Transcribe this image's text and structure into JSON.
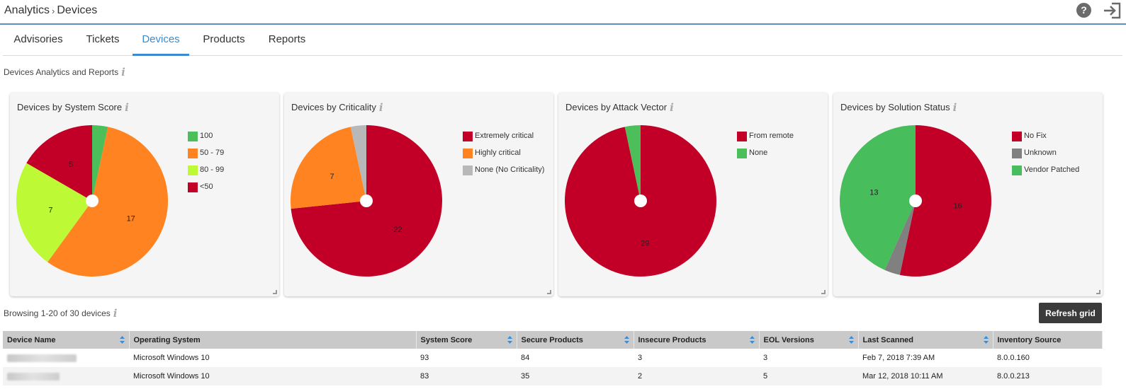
{
  "breadcrumb": {
    "section": "Analytics",
    "page": "Devices"
  },
  "header": {
    "help_icon": "question-circle-icon",
    "logout_icon": "sign-out-icon"
  },
  "tabs": [
    {
      "label": "Advisories",
      "active": false
    },
    {
      "label": "Tickets",
      "active": false
    },
    {
      "label": "Devices",
      "active": true
    },
    {
      "label": "Products",
      "active": false
    },
    {
      "label": "Reports",
      "active": false
    }
  ],
  "section_title": "Devices Analytics and Reports",
  "cards": [
    {
      "title": "Devices by System Score"
    },
    {
      "title": "Devices by Criticality"
    },
    {
      "title": "Devices by Attack Vector"
    },
    {
      "title": "Devices by Solution Status"
    }
  ],
  "chart_data": [
    {
      "type": "pie",
      "title": "Devices by System Score",
      "categories": [
        "100",
        "50 - 79",
        "80 - 99",
        "<50"
      ],
      "values": [
        1,
        17,
        7,
        5
      ],
      "colors": [
        "#4cbf5a",
        "#ff8421",
        "#bdfa35",
        "#c20027"
      ],
      "labels_shown": [
        false,
        true,
        true,
        true
      ],
      "legend": "right"
    },
    {
      "type": "pie",
      "title": "Devices by Criticality",
      "categories": [
        "Extremely critical",
        "Highly critical",
        "None (No Criticality)"
      ],
      "values": [
        22,
        7,
        1
      ],
      "colors": [
        "#c20027",
        "#ff8421",
        "#b8b8b8"
      ],
      "labels_shown": [
        true,
        true,
        false
      ],
      "legend": "right"
    },
    {
      "type": "pie",
      "title": "Devices by Attack Vector",
      "categories": [
        "From remote",
        "None"
      ],
      "values": [
        29,
        1
      ],
      "colors": [
        "#c20027",
        "#4cbf5a"
      ],
      "labels_shown": [
        true,
        false
      ],
      "legend": "right"
    },
    {
      "type": "pie",
      "title": "Devices by Solution Status",
      "categories": [
        "No Fix",
        "Unknown",
        "Vendor Patched"
      ],
      "values": [
        16,
        1,
        13
      ],
      "colors": [
        "#c20027",
        "#808080",
        "#47bd5c"
      ],
      "labels_shown": [
        true,
        false,
        true
      ],
      "legend": "right"
    }
  ],
  "browse_label": "Browsing 1-20 of 30 devices",
  "refresh_label": "Refresh grid",
  "table": {
    "columns": [
      "Device Name",
      "Operating System",
      "System Score",
      "Secure Products",
      "Insecure Products",
      "EOL Versions",
      "Last Scanned",
      "Inventory Source"
    ],
    "rows": [
      [
        "",
        "Microsoft Windows 10",
        "93",
        "84",
        "3",
        "3",
        "Feb 7, 2018 7:39 AM",
        "8.0.0.160"
      ],
      [
        "",
        "Microsoft Windows 10",
        "83",
        "35",
        "2",
        "5",
        "Mar 12, 2018 10:11 AM",
        "8.0.0.213"
      ]
    ]
  },
  "colors": {
    "accent": "#3c8bd0",
    "header_rule": "#5b8fc7"
  }
}
